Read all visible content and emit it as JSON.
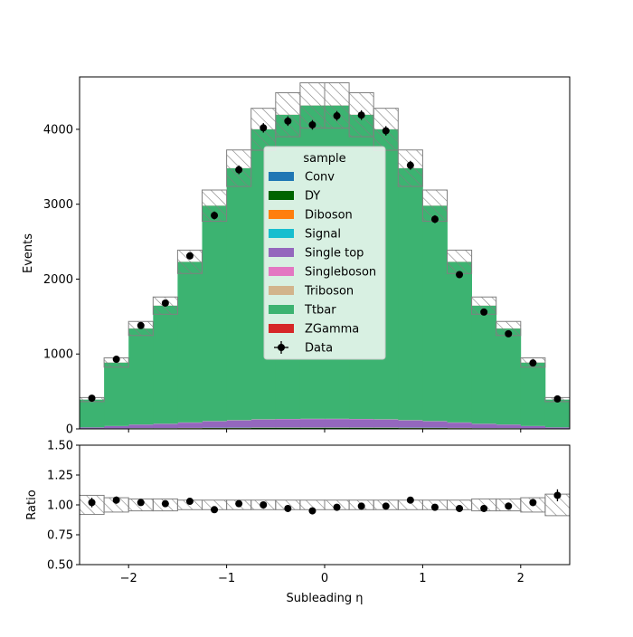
{
  "chart_data": [
    {
      "type": "stacked-step-histogram",
      "xlabel": "Subleading η",
      "ylabel": "Events",
      "xlim": [
        -2.5,
        2.5
      ],
      "ylim": [
        0,
        4700
      ],
      "y_ticks": [
        "0",
        "1000",
        "2000",
        "3000",
        "4000"
      ],
      "x_ticks": [
        "−2",
        "−1",
        "0",
        "1",
        "2"
      ],
      "bin_edges": [
        -2.5,
        -2.25,
        -2.0,
        -1.75,
        -1.5,
        -1.25,
        -1.0,
        -0.75,
        -0.5,
        -0.25,
        0.0,
        0.25,
        0.5,
        0.75,
        1.0,
        1.25,
        1.5,
        1.75,
        2.0,
        2.25,
        2.5
      ],
      "series": [
        {
          "name": "Conv",
          "color": "#1f77b4",
          "values": [
            1,
            2,
            3,
            3,
            4,
            5,
            5,
            6,
            6,
            6,
            6,
            6,
            6,
            5,
            5,
            4,
            3,
            3,
            2,
            1
          ]
        },
        {
          "name": "DY",
          "color": "#006400",
          "values": [
            2,
            3,
            4,
            4,
            5,
            6,
            6,
            7,
            7,
            7,
            7,
            7,
            7,
            6,
            6,
            5,
            4,
            4,
            3,
            2
          ]
        },
        {
          "name": "Diboson",
          "color": "#ff7f0e",
          "values": [
            1,
            1,
            2,
            2,
            2,
            2,
            3,
            3,
            3,
            3,
            3,
            3,
            3,
            3,
            2,
            2,
            2,
            2,
            1,
            1
          ]
        },
        {
          "name": "Signal",
          "color": "#17becf",
          "values": [
            1,
            1,
            2,
            2,
            2,
            3,
            3,
            3,
            3,
            3,
            3,
            3,
            3,
            3,
            3,
            2,
            2,
            2,
            1,
            1
          ]
        },
        {
          "name": "Single top",
          "color": "#9467bd",
          "values": [
            15,
            30,
            45,
            55,
            70,
            85,
            95,
            105,
            110,
            112,
            112,
            110,
            105,
            95,
            85,
            70,
            55,
            45,
            30,
            15
          ]
        },
        {
          "name": "Singleboson",
          "color": "#e377c2",
          "values": [
            1,
            1,
            2,
            2,
            2,
            2,
            3,
            3,
            3,
            3,
            3,
            3,
            3,
            3,
            2,
            2,
            2,
            2,
            1,
            1
          ]
        },
        {
          "name": "Triboson",
          "color": "#d2b48c",
          "values": [
            0,
            0,
            0,
            1,
            1,
            1,
            1,
            1,
            1,
            1,
            1,
            1,
            1,
            1,
            1,
            1,
            1,
            0,
            0,
            0
          ]
        },
        {
          "name": "Ttbar",
          "color": "#3cb371",
          "values": [
            370,
            847,
            1282,
            1576,
            2144,
            2876,
            3364,
            3872,
            4061,
            4183,
            4183,
            4061,
            3872,
            3364,
            2876,
            2144,
            1576,
            1282,
            847,
            370
          ]
        },
        {
          "name": "ZGamma",
          "color": "#d62728",
          "values": [
            0,
            1,
            1,
            1,
            1,
            1,
            1,
            1,
            1,
            1,
            1,
            1,
            1,
            1,
            1,
            1,
            1,
            1,
            1,
            0
          ]
        }
      ],
      "mc_uncertainty_fraction": 0.07,
      "data": {
        "name": "Data",
        "x": [
          -2.375,
          -2.125,
          -1.875,
          -1.625,
          -1.375,
          -1.125,
          -0.875,
          -0.625,
          -0.375,
          -0.125,
          0.125,
          0.375,
          0.625,
          0.875,
          1.125,
          1.375,
          1.625,
          1.875,
          2.125,
          2.375
        ],
        "y": [
          410,
          930,
          1380,
          1680,
          2310,
          2850,
          3460,
          4020,
          4110,
          4060,
          4180,
          4190,
          3980,
          3520,
          2800,
          2060,
          1560,
          1270,
          880,
          400
        ]
      },
      "legend": {
        "title": "sample",
        "position": "center"
      }
    },
    {
      "type": "ratio-scatter",
      "xlabel": "Subleading η",
      "ylabel": "Ratio",
      "xlim": [
        -2.5,
        2.5
      ],
      "ylim": [
        0.5,
        1.5
      ],
      "y_ticks": [
        "0.50",
        "0.75",
        "1.00",
        "1.25",
        "1.50"
      ],
      "x_ticks": [
        "−2",
        "−1",
        "0",
        "1",
        "2"
      ],
      "band_halfwidth": [
        0.08,
        0.06,
        0.05,
        0.05,
        0.04,
        0.04,
        0.04,
        0.04,
        0.04,
        0.04,
        0.04,
        0.04,
        0.04,
        0.04,
        0.04,
        0.04,
        0.05,
        0.05,
        0.06,
        0.09
      ],
      "x": [
        -2.375,
        -2.125,
        -1.875,
        -1.625,
        -1.375,
        -1.125,
        -0.875,
        -0.625,
        -0.375,
        -0.125,
        0.125,
        0.375,
        0.625,
        0.875,
        1.125,
        1.375,
        1.625,
        1.875,
        2.125,
        2.375
      ],
      "y": [
        1.02,
        1.04,
        1.02,
        1.01,
        1.03,
        0.96,
        1.01,
        1.0,
        0.97,
        0.95,
        0.98,
        0.99,
        0.99,
        1.04,
        0.98,
        0.97,
        0.97,
        0.99,
        1.02,
        1.08
      ],
      "yerr": [
        0.04,
        0.03,
        0.02,
        0.02,
        0.02,
        0.02,
        0.02,
        0.02,
        0.02,
        0.02,
        0.02,
        0.02,
        0.02,
        0.02,
        0.02,
        0.02,
        0.02,
        0.03,
        0.03,
        0.05
      ]
    }
  ]
}
